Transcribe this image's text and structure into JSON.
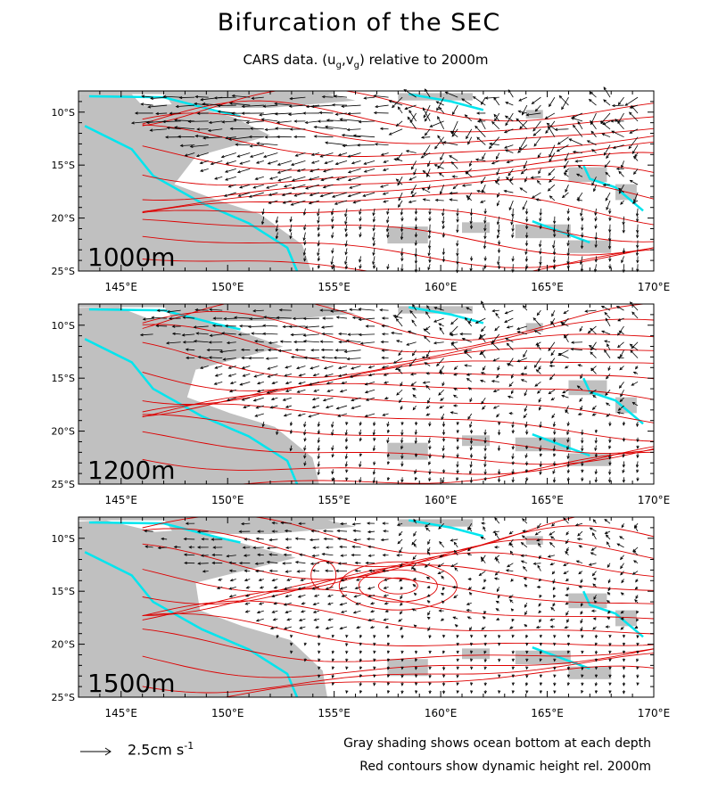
{
  "title": "Bifurcation of the SEC",
  "subtitle_prefix": "CARS data. (u",
  "subtitle_sub1": "g",
  "subtitle_mid": ",v",
  "subtitle_sub2": "g",
  "subtitle_suffix": ") relative to 2000m",
  "map": {
    "lon_range": [
      143,
      170
    ],
    "lat_range": [
      -25,
      -8
    ],
    "lon_ticks": [
      "145°E",
      "150°E",
      "155°E",
      "160°E",
      "165°E",
      "170°E"
    ],
    "lat_ticks": [
      "10°S",
      "15°S",
      "20°S",
      "25°S"
    ],
    "colors": {
      "land": "#c0c0c0",
      "coast": "#00e5ee",
      "contour": "#dd0000",
      "vector": "#000000"
    },
    "panels": [
      {
        "depth_label": "1000m"
      },
      {
        "depth_label": "1200m"
      },
      {
        "depth_label": "1500m"
      }
    ]
  },
  "legend": {
    "scale_value": "2.5cm s",
    "scale_exp": "-1"
  },
  "notes": {
    "line1": "Gray shading shows ocean bottom at each depth",
    "line2": "Red contours show dynamic height rel. 2000m"
  }
}
